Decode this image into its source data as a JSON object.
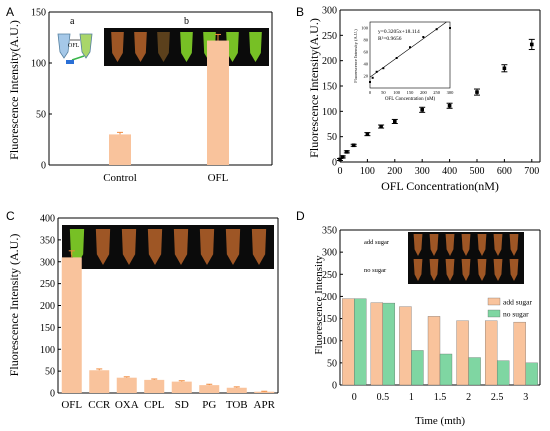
{
  "colors": {
    "bar_orange": "#f9c39c",
    "bar_green": "#7fd6a2",
    "error_orange": "#f08a3c",
    "axis": "#000000",
    "photo_bg": "#0b0b0b",
    "tube_orange": "#b8642a",
    "tube_green": "#8be02a",
    "tube_yellow": "#c8a020",
    "tube_dim": "#6a4a20"
  },
  "panels": {
    "A": {
      "label": "A",
      "photo_label_a": "a",
      "photo_label_b": "b",
      "ofl_label": "OFL",
      "photo_tubes": [
        "tube_orange",
        "tube_orange",
        "tube_dim",
        "tube_green",
        "tube_green",
        "tube_green",
        "tube_green"
      ]
    },
    "B": {
      "label": "B",
      "inset": {
        "equation": "y=0.3205x+18.114",
        "r2": "R²=0.9656",
        "xlabel": "OFL Concentration (nM)",
        "ylabel": "Fluorescence Intensity (A.U.)",
        "x_ticks": [
          "0",
          "50",
          "100",
          "150",
          "200",
          "250",
          "300"
        ],
        "y_ticks": [
          "20",
          "40",
          "60",
          "80",
          "100"
        ],
        "xlim": [
          0,
          300
        ],
        "ylim": [
          0,
          110
        ],
        "points": [
          [
            0,
            10
          ],
          [
            10,
            17
          ],
          [
            25,
            27
          ],
          [
            50,
            33
          ],
          [
            100,
            50
          ],
          [
            150,
            68
          ],
          [
            200,
            85
          ],
          [
            250,
            98
          ],
          [
            300,
            100
          ]
        ],
        "fit": [
          [
            0,
            18.114
          ],
          [
            300,
            114.26
          ]
        ]
      }
    },
    "C": {
      "label": "C",
      "photo_tubes": [
        "tube_green",
        "tube_orange",
        "tube_orange",
        "tube_orange",
        "tube_orange",
        "tube_orange",
        "tube_orange",
        "tube_orange"
      ]
    },
    "D": {
      "label": "D",
      "photo_row1": "add sugar",
      "photo_row2": "no sugar",
      "photo_tubes": [
        "tube_orange",
        "tube_orange",
        "tube_orange",
        "tube_orange",
        "tube_orange",
        "tube_orange",
        "tube_orange"
      ]
    }
  },
  "chart_data": [
    {
      "type": "bar",
      "panel": "A",
      "categories": [
        "Control",
        "OFL"
      ],
      "values": [
        30,
        122
      ],
      "errors": [
        2,
        6
      ],
      "ylabel": "Fluorescence Intensity(A.U.)",
      "ylim": [
        0,
        150
      ],
      "yticks": [
        0,
        50,
        100,
        150
      ]
    },
    {
      "type": "scatter",
      "panel": "B",
      "x": [
        0,
        10,
        25,
        50,
        100,
        150,
        200,
        300,
        400,
        500,
        600,
        700
      ],
      "y": [
        5,
        10,
        20,
        33,
        55,
        70,
        80,
        103,
        111,
        138,
        185,
        232
      ],
      "errors": [
        2,
        2,
        2,
        2,
        3,
        3,
        4,
        5,
        5,
        6,
        7,
        10
      ],
      "xlabel": "OFL Concentration(nM)",
      "ylabel": "Fluorescence Intensity(A.U.)",
      "xlim": [
        0,
        730
      ],
      "ylim": [
        0,
        300
      ],
      "xticks": [
        0,
        100,
        200,
        300,
        400,
        500,
        600,
        700
      ],
      "yticks": [
        0,
        50,
        100,
        150,
        200,
        250,
        300
      ]
    },
    {
      "type": "bar",
      "panel": "C",
      "categories": [
        "OFL",
        "CCR",
        "OXA",
        "CPL",
        "SD",
        "PG",
        "TOB",
        "APR"
      ],
      "values": [
        310,
        52,
        35,
        30,
        26,
        18,
        12,
        3
      ],
      "errors": [
        15,
        3,
        2,
        2,
        2,
        2,
        2,
        1
      ],
      "ylabel": "Fluorescence Intensity (A.U.)",
      "ylim": [
        0,
        400
      ],
      "yticks": [
        0,
        50,
        100,
        150,
        200,
        250,
        300,
        350,
        400
      ]
    },
    {
      "type": "bar",
      "panel": "D",
      "categories": [
        "0",
        "0.5",
        "1",
        "1.5",
        "2",
        "2.5",
        "3"
      ],
      "series": [
        {
          "name": "add sugar",
          "values": [
            195,
            186,
            177,
            155,
            145,
            145,
            142
          ]
        },
        {
          "name": "no sugar",
          "values": [
            195,
            185,
            78,
            70,
            62,
            55,
            50
          ]
        }
      ],
      "xlabel": "Time (mth)",
      "ylabel": "Fluorescence Intensity",
      "ylim": [
        0,
        350
      ],
      "yticks": [
        0,
        50,
        100,
        150,
        200,
        250,
        300,
        350
      ],
      "legend_position": "right"
    }
  ]
}
